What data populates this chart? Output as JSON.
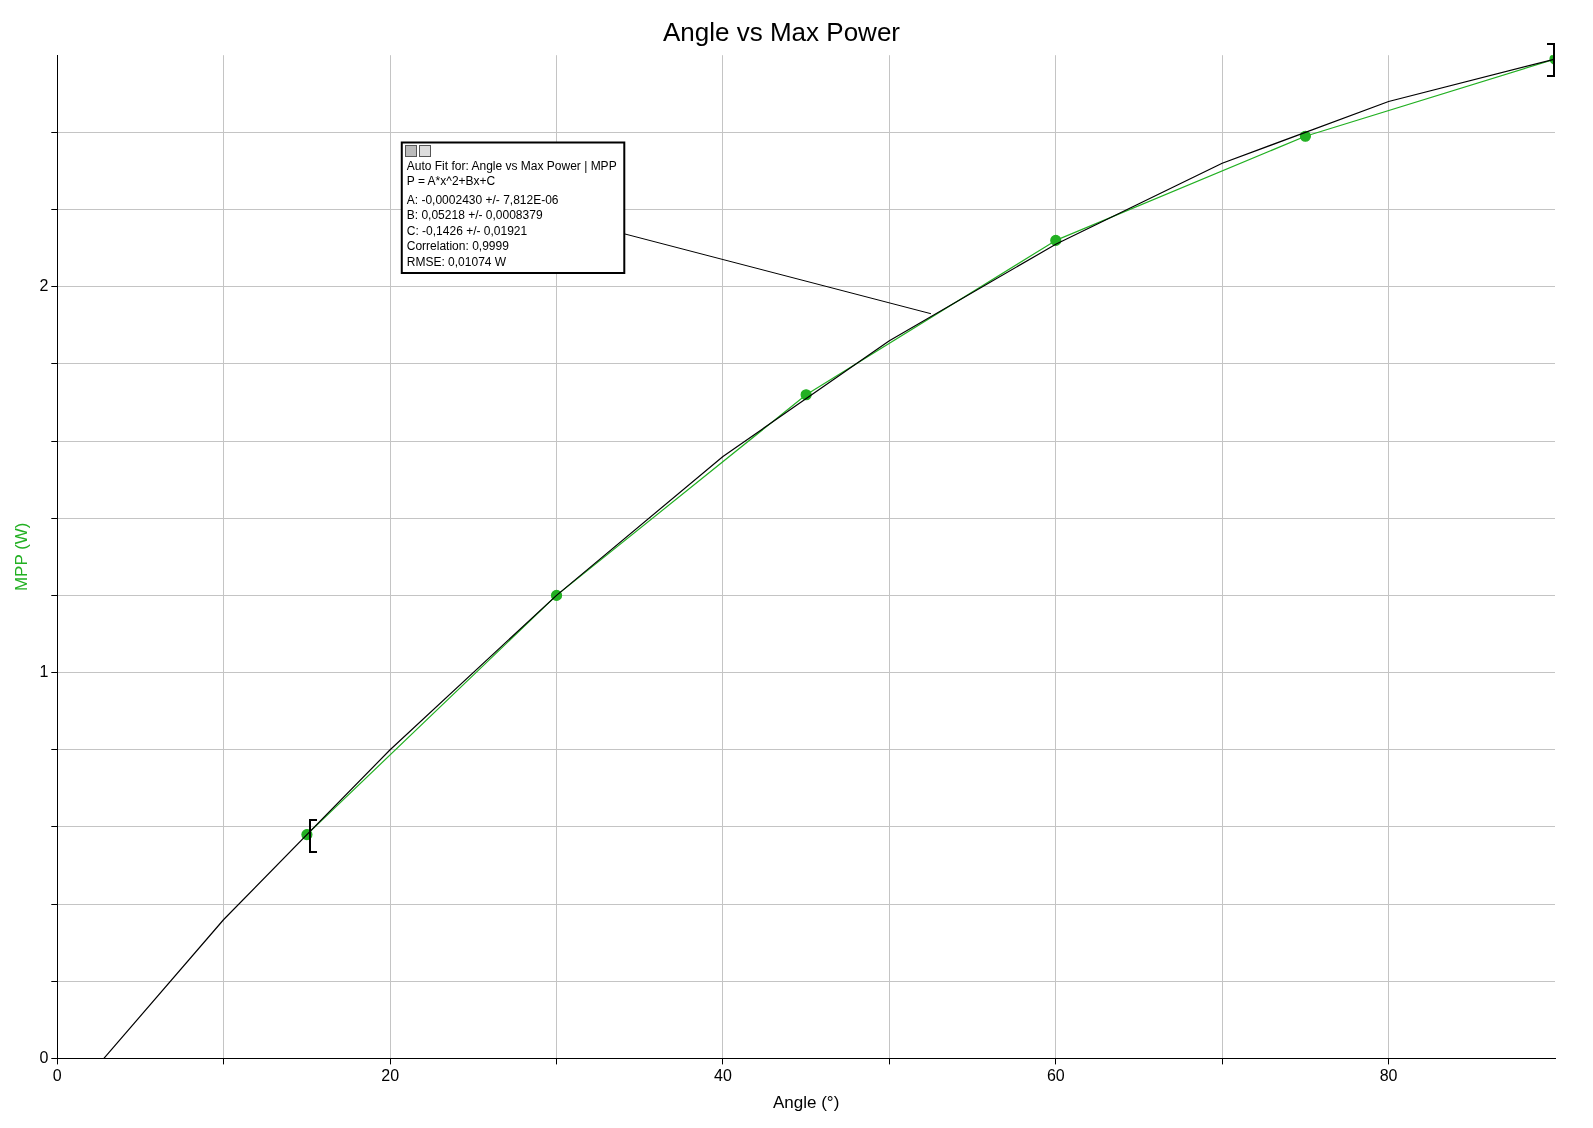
{
  "chart_data": {
    "type": "line",
    "title": "Angle vs Max Power",
    "xlabel": "Angle (°)",
    "ylabel": "MPP (W)",
    "xlim": [
      0,
      90
    ],
    "xticks": [
      0,
      {
        "value": 10,
        "label": null
      },
      20,
      {
        "value": 30,
        "label": null
      },
      40,
      {
        "value": 50,
        "label": null
      },
      60,
      {
        "value": 70,
        "label": null
      },
      80
    ],
    "ylim": [
      0,
      2.6
    ],
    "yticks": [
      0,
      {
        "value": 0.2,
        "label": null
      },
      {
        "value": 0.4,
        "label": null
      },
      {
        "value": 0.6,
        "label": null
      },
      {
        "value": 0.8,
        "label": null
      },
      1,
      {
        "value": 1.2,
        "label": null
      },
      {
        "value": 1.4,
        "label": null
      },
      {
        "value": 1.6,
        "label": null
      },
      {
        "value": 1.8,
        "label": null
      },
      2,
      {
        "value": 2.2,
        "label": null
      },
      {
        "value": 2.4,
        "label": null
      }
    ],
    "grid": true,
    "legend": false,
    "series": [
      {
        "color": "#22b022",
        "marker": "circle",
        "x": [
          15,
          30,
          45,
          60,
          75,
          90
        ],
        "values": [
          0.58,
          1.2,
          1.72,
          2.12,
          2.39,
          2.59
        ]
      },
      {
        "color": "#000000",
        "marker": "none",
        "x": [
          2.8,
          10,
          20,
          30,
          40,
          50,
          60,
          70,
          80,
          90
        ],
        "values": [
          0,
          0.36,
          0.8,
          1.2,
          1.56,
          1.86,
          2.11,
          2.32,
          2.48,
          2.59
        ]
      }
    ],
    "annotations": [
      {
        "text": "Auto Fit for: Angle vs Max Power | MPP\nP = A*x^2+Bx+C\nA: -0,0002430 +/- 7,812E-06\nB: 0,05218 +/- 0,0008379\nC: -0,1426 +/- 0,01921\nCorrelation: 0,9999\nRMSE: 0,01074 W",
        "x": 52.5,
        "y": 1.93
      }
    ]
  }
}
